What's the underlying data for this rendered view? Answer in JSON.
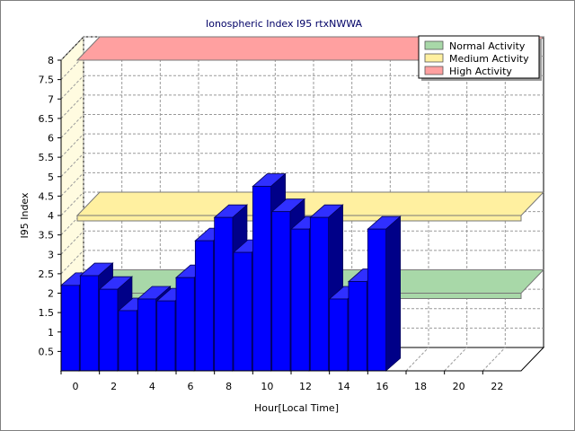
{
  "chart_data": {
    "type": "bar",
    "title": "Ionospheric Index I95 rtxNWWA",
    "xlabel": "Hour[Local Time]",
    "ylabel": "I95 Index",
    "xlim": [
      0,
      24
    ],
    "ylim": [
      0,
      8
    ],
    "x_ticks": [
      "0",
      "2",
      "4",
      "6",
      "8",
      "10",
      "12",
      "14",
      "16",
      "18",
      "20",
      "22"
    ],
    "y_ticks": [
      "0.5",
      "1",
      "1.5",
      "2",
      "2.5",
      "3",
      "3.5",
      "4",
      "4.5",
      "5",
      "5.5",
      "6",
      "6.5",
      "7",
      "7.5",
      "8"
    ],
    "grid": true,
    "legend_position": "top-right",
    "series": [
      {
        "name": "I95",
        "color": "#0000ff",
        "x": [
          0,
          1,
          2,
          3,
          4,
          5,
          6,
          7,
          8,
          9,
          10,
          11,
          12,
          13,
          14,
          15,
          16
        ],
        "values": [
          2.2,
          2.45,
          2.1,
          1.55,
          1.85,
          1.8,
          2.4,
          3.35,
          3.95,
          3.05,
          4.75,
          4.1,
          3.65,
          3.95,
          1.85,
          2.3,
          3.65
        ]
      }
    ],
    "bands": [
      {
        "name": "Normal Activity",
        "level": 2,
        "color": "#a8d8a8"
      },
      {
        "name": "Medium Activity",
        "level": 4,
        "color": "#fff0a0"
      },
      {
        "name": "High Activity",
        "level": 8,
        "color": "#ffa0a0"
      }
    ]
  }
}
